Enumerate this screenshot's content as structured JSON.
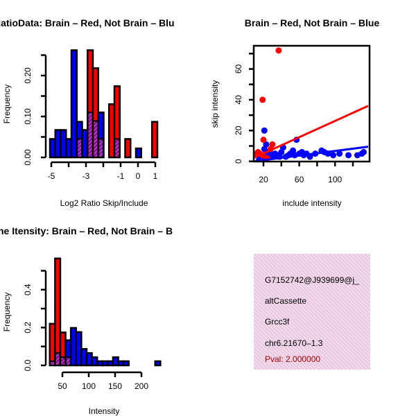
{
  "colors": {
    "red": "#ff0000",
    "blue": "#0000ff",
    "purple": "#8b0f9a",
    "pink": "#f6d6f0",
    "pval": "#b00000"
  },
  "chart_data": [
    {
      "type": "bar",
      "title": "RatioData: Brain – Red, Not Brain – Blu",
      "xlabel": "Log2 Ratio Skip/Include",
      "ylabel": "Frequency",
      "xticks": [
        -5,
        -4,
        -3,
        -2,
        -1,
        0,
        1
      ],
      "xtick_labels": [
        "-5",
        "",
        "-3",
        "",
        "-1",
        "0",
        "1"
      ],
      "yticks": [
        0,
        0.05,
        0.1,
        0.15,
        0.2,
        0.25
      ],
      "ytick_labels": [
        "0.00",
        "",
        "0.10",
        "",
        "0.20",
        ""
      ],
      "bin_start": -5.08,
      "bin_width": 0.31,
      "series": [
        {
          "name": "Not Brain",
          "color": "blue",
          "values": [
            0.045,
            0.067,
            0.067,
            0.045,
            0.262,
            0.087,
            0.067,
            0.11,
            0.089,
            0.11,
            0,
            0,
            0.045,
            0,
            0,
            0,
            0.022,
            0,
            0,
            0
          ]
        },
        {
          "name": "Brain",
          "color": "red",
          "values": [
            0,
            0,
            0,
            0,
            0,
            0.045,
            0,
            0.262,
            0.218,
            0.045,
            0,
            0.13,
            0.174,
            0,
            0.045,
            0,
            0,
            0,
            0,
            0.087
          ]
        }
      ]
    },
    {
      "type": "scatter",
      "title": "Brain – Red, Not Brain – Blue",
      "xlabel": "include intensity",
      "ylabel": "skip intensity",
      "xticks": [
        20,
        40,
        60,
        80,
        100,
        120
      ],
      "xtick_labels": [
        "20",
        "",
        "60",
        "",
        "100",
        ""
      ],
      "yticks": [
        0,
        10,
        20,
        30,
        40,
        50,
        60,
        70
      ],
      "ytick_labels": [
        "0",
        "",
        "20",
        "",
        "40",
        "",
        "60",
        ""
      ],
      "series": [
        {
          "name": "Brain",
          "color": "red",
          "points": [
            [
              37,
              72
            ],
            [
              19,
              40
            ],
            [
              20,
              14
            ],
            [
              30,
              11
            ],
            [
              14,
              6
            ],
            [
              16,
              5
            ],
            [
              19,
              4
            ],
            [
              24,
              2
            ],
            [
              28,
              8
            ],
            [
              12,
              5
            ]
          ],
          "fit": [
            [
              10,
              2.5
            ],
            [
              137,
              36
            ]
          ]
        },
        {
          "name": "Not Brain",
          "color": "blue",
          "points": [
            [
              20,
              3
            ],
            [
              21,
              8
            ],
            [
              21,
              20
            ],
            [
              23,
              11
            ],
            [
              25,
              4
            ],
            [
              28,
              5
            ],
            [
              30,
              3
            ],
            [
              33,
              5
            ],
            [
              35,
              4
            ],
            [
              38,
              3
            ],
            [
              40,
              6
            ],
            [
              42,
              9
            ],
            [
              45,
              3
            ],
            [
              48,
              4
            ],
            [
              50,
              5
            ],
            [
              53,
              7
            ],
            [
              55,
              4
            ],
            [
              57,
              14
            ],
            [
              60,
              5
            ],
            [
              63,
              6
            ],
            [
              65,
              4
            ],
            [
              68,
              5
            ],
            [
              72,
              3
            ],
            [
              78,
              5
            ],
            [
              85,
              7
            ],
            [
              88,
              6
            ],
            [
              92,
              5
            ],
            [
              98,
              4
            ],
            [
              105,
              5
            ],
            [
              115,
              4
            ],
            [
              125,
              4
            ],
            [
              130,
              5
            ],
            [
              132,
              6
            ],
            [
              15,
              1
            ],
            [
              18,
              2
            ],
            [
              26,
              6
            ]
          ],
          "fit": [
            [
              10,
              0
            ],
            [
              137,
              9.5
            ]
          ]
        }
      ]
    },
    {
      "type": "bar",
      "title": "ne Itensity: Brain – Red, Not Brain – B",
      "xlabel": "Intensity",
      "ylabel": "Frequency",
      "xticks": [
        50,
        100,
        150,
        200
      ],
      "xtick_labels": [
        "50",
        "100",
        "150",
        "200"
      ],
      "yticks": [
        0,
        0.1,
        0.2,
        0.3,
        0.4,
        0.5
      ],
      "ytick_labels": [
        "0.0",
        "",
        "0.2",
        "",
        "0.4",
        ""
      ],
      "bin_start": 26,
      "bin_width": 10,
      "series": [
        {
          "name": "Not Brain",
          "color": "blue",
          "values": [
            0.022,
            0.065,
            0.043,
            0.133,
            0.198,
            0.176,
            0.087,
            0.065,
            0.043,
            0.022,
            0.022,
            0.022,
            0.043,
            0.022,
            0.022,
            0,
            0,
            0,
            0,
            0,
            0.022
          ]
        },
        {
          "name": "Brain",
          "color": "red",
          "values": [
            0.22,
            0.565,
            0.174,
            0.043,
            0,
            0,
            0,
            0,
            0,
            0,
            0,
            0,
            0,
            0,
            0,
            0,
            0,
            0,
            0,
            0,
            0
          ]
        }
      ]
    }
  ],
  "info": {
    "id": "G7152742@J939699@j_",
    "event_type": "altCassette",
    "gene": "Grcc3f",
    "location": "chr6.21670–1.3",
    "pval": "Pval: 2.000000"
  }
}
